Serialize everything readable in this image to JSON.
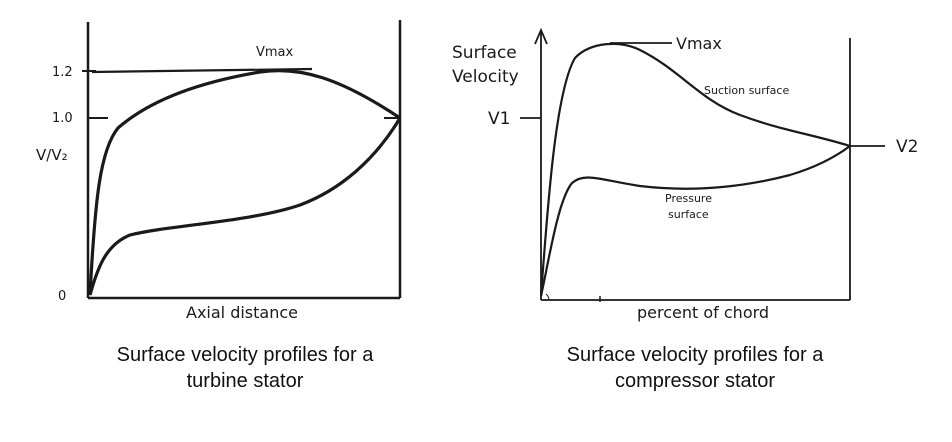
{
  "left_figure": {
    "title": "",
    "y_ticks": [
      "1.2",
      "1.0",
      "0"
    ],
    "y_axis_label": "V/V₂",
    "x_axis_label": "Axial distance",
    "peak_label": "Vmax",
    "caption_line1": "Surface velocity profiles for a",
    "caption_line2": "turbine stator"
  },
  "right_figure": {
    "y_axis_label_line1": "Surface",
    "y_axis_label_line2": "Velocity",
    "inlet_label": "V1",
    "outlet_label": "V2",
    "peak_label": "Vmax",
    "suction_label": "Suction surface",
    "pressure_label_line1": "Pressure",
    "pressure_label_line2": "surface",
    "x_axis_label": "percent of chord",
    "caption_line1": "Surface velocity profiles for a",
    "caption_line2": "compressor stator"
  },
  "colors": {
    "ink": "#1a1a1a",
    "background": "#ffffff"
  }
}
